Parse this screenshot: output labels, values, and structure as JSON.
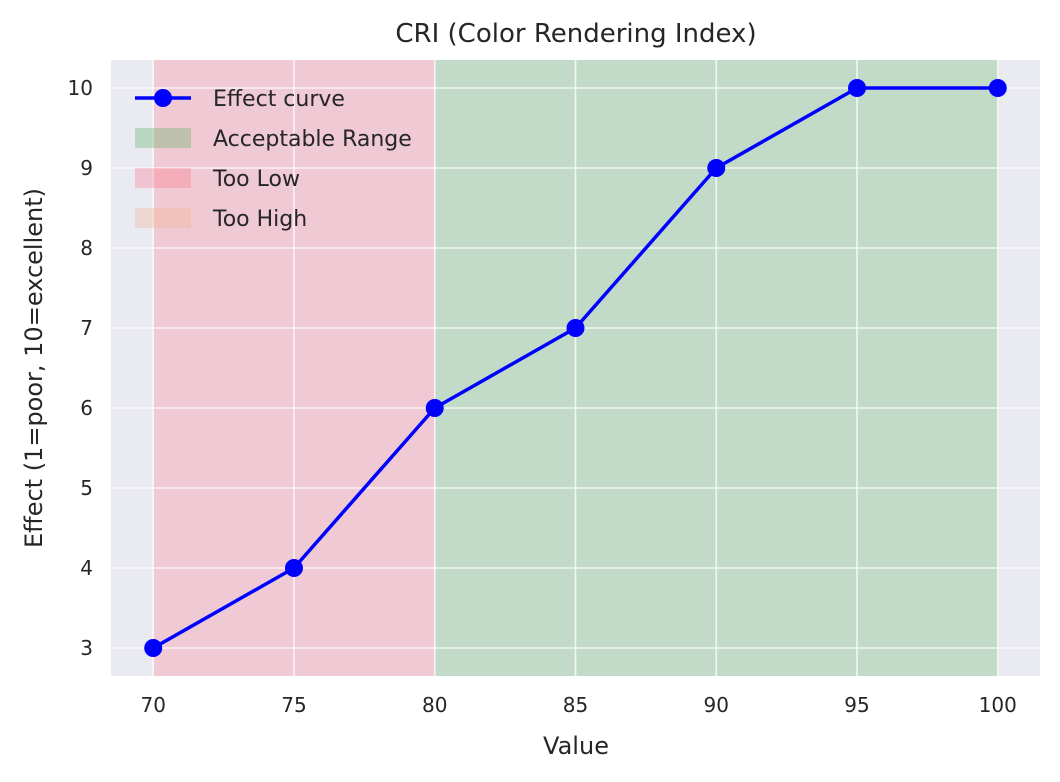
{
  "chart_data": {
    "type": "line",
    "title": "CRI (Color Rendering Index)",
    "xlabel": "Value",
    "ylabel": "Effect (1=poor, 10=excellent)",
    "x": [
      70,
      75,
      80,
      85,
      90,
      95,
      100
    ],
    "series": [
      {
        "name": "Effect curve",
        "values": [
          3,
          4,
          6,
          7,
          9,
          10,
          10
        ],
        "color": "#0000ff",
        "marker": "circle"
      }
    ],
    "xlim": [
      68.5,
      101.5
    ],
    "ylim": [
      2.65,
      10.35
    ],
    "xticks": [
      70,
      75,
      80,
      85,
      90,
      95,
      100
    ],
    "yticks": [
      3,
      4,
      5,
      6,
      7,
      8,
      9,
      10
    ],
    "grid": true,
    "background": "#eaeaf2",
    "bands": [
      {
        "name": "Acceptable Range",
        "from": 80,
        "to": 100,
        "color": "#4caf50",
        "opacity": 0.25
      },
      {
        "name": "Too Low",
        "from": 70,
        "to": 80,
        "color": "#ff6b81",
        "opacity": 0.25
      },
      {
        "name": "Too High",
        "from": 100,
        "to": 100,
        "color": "#f4b183",
        "opacity": 0.25
      }
    ],
    "legend": {
      "position": "top-left",
      "entries": [
        "Effect curve",
        "Acceptable Range",
        "Too Low",
        "Too High"
      ]
    }
  }
}
